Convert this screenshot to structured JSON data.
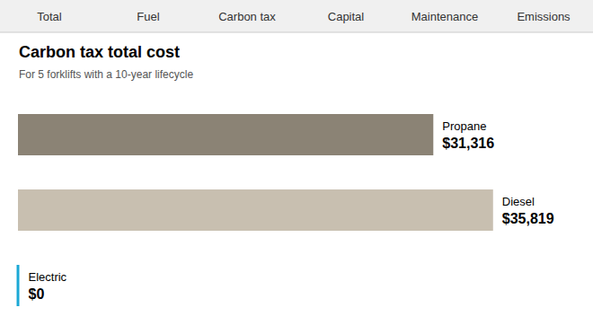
{
  "chart_data": {
    "type": "bar",
    "orientation": "horizontal",
    "title": "Carbon tax total cost",
    "subtitle": "For 5 forklifts with a 10-year lifecycle",
    "annotations": [
      "Total",
      "Fuel",
      "Carbon tax",
      "Capital",
      "Maintenance",
      "Emissions"
    ],
    "categories": [
      "Propane",
      "Diesel",
      "Electric"
    ],
    "values": [
      31316,
      35819,
      0
    ],
    "value_labels": [
      "$31,316",
      "$35,819",
      "$0"
    ],
    "colors": [
      "#8B8375",
      "#C8BFB0",
      "#1BA8D5"
    ],
    "xlim": [
      0,
      42000
    ],
    "data_labels": true,
    "tick_labels": false,
    "grid": false
  }
}
